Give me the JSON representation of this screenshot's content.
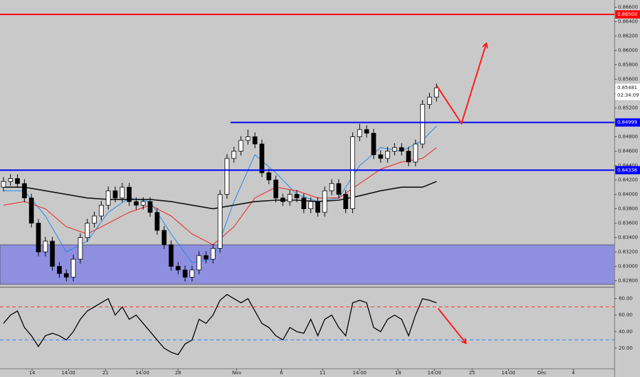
{
  "chart_data": {
    "type": "candlestick",
    "background": "#c9c9c9",
    "x": [
      0,
      1,
      2,
      3,
      4,
      5,
      6,
      7,
      8,
      9,
      10,
      11,
      12,
      13,
      14,
      15,
      16,
      17,
      18,
      19,
      20,
      21,
      22,
      23,
      24,
      25,
      26,
      27,
      28,
      29,
      30,
      31,
      32,
      33,
      34,
      35,
      36,
      37,
      38,
      39,
      40,
      41,
      42,
      43,
      44,
      45,
      46,
      47,
      48,
      49,
      50,
      51,
      52,
      53,
      54,
      55,
      56,
      57,
      58,
      59,
      60,
      61,
      62
    ],
    "open": [
      0.841,
      0.8418,
      0.8422,
      0.8415,
      0.8395,
      0.836,
      0.832,
      0.8335,
      0.83,
      0.829,
      0.8285,
      0.831,
      0.834,
      0.836,
      0.837,
      0.8385,
      0.8405,
      0.8395,
      0.841,
      0.839,
      0.8385,
      0.839,
      0.8375,
      0.835,
      0.833,
      0.83,
      0.8295,
      0.8285,
      0.8295,
      0.8315,
      0.831,
      0.8325,
      0.84,
      0.845,
      0.846,
      0.8475,
      0.848,
      0.847,
      0.843,
      0.842,
      0.8395,
      0.839,
      0.84,
      0.8395,
      0.838,
      0.839,
      0.8375,
      0.8405,
      0.8415,
      0.84,
      0.838,
      0.848,
      0.849,
      0.8485,
      0.8455,
      0.845,
      0.846,
      0.8465,
      0.846,
      0.8445,
      0.847,
      0.8525,
      0.8535
    ],
    "high": [
      0.8424,
      0.8428,
      0.8428,
      0.8421,
      0.8401,
      0.8366,
      0.8341,
      0.8341,
      0.8306,
      0.8296,
      0.8316,
      0.8346,
      0.8366,
      0.8376,
      0.8391,
      0.8411,
      0.8411,
      0.8416,
      0.8416,
      0.8396,
      0.8396,
      0.8396,
      0.8381,
      0.8356,
      0.8336,
      0.8306,
      0.8301,
      0.8301,
      0.8321,
      0.8321,
      0.8331,
      0.8406,
      0.8456,
      0.8466,
      0.8481,
      0.849,
      0.8486,
      0.8476,
      0.8436,
      0.8426,
      0.8401,
      0.8406,
      0.8406,
      0.8401,
      0.8396,
      0.8396,
      0.8411,
      0.8421,
      0.8421,
      0.8406,
      0.8486,
      0.8498,
      0.8496,
      0.8491,
      0.8461,
      0.8466,
      0.8471,
      0.8471,
      0.8466,
      0.8476,
      0.8531,
      0.8541,
      0.8554
    ],
    "low": [
      0.8404,
      0.8412,
      0.8409,
      0.8389,
      0.8354,
      0.8314,
      0.8314,
      0.8294,
      0.8284,
      0.8279,
      0.8279,
      0.8304,
      0.8334,
      0.8354,
      0.8364,
      0.8379,
      0.8389,
      0.8389,
      0.8384,
      0.8379,
      0.8379,
      0.8369,
      0.8344,
      0.8324,
      0.8294,
      0.8289,
      0.8279,
      0.8279,
      0.8289,
      0.8304,
      0.8304,
      0.8319,
      0.8394,
      0.8444,
      0.8454,
      0.8469,
      0.8464,
      0.8424,
      0.8414,
      0.8389,
      0.8384,
      0.8384,
      0.8389,
      0.8374,
      0.8374,
      0.8369,
      0.8369,
      0.8399,
      0.8394,
      0.8374,
      0.8374,
      0.8474,
      0.8479,
      0.8449,
      0.8444,
      0.8444,
      0.8454,
      0.8454,
      0.8439,
      0.8439,
      0.8464,
      0.8519,
      0.8529
    ],
    "close": [
      0.8418,
      0.8422,
      0.8415,
      0.8395,
      0.836,
      0.832,
      0.8335,
      0.83,
      0.829,
      0.8285,
      0.831,
      0.834,
      0.836,
      0.837,
      0.8385,
      0.8405,
      0.8395,
      0.841,
      0.839,
      0.8385,
      0.839,
      0.8375,
      0.835,
      0.833,
      0.83,
      0.8295,
      0.8285,
      0.8295,
      0.8315,
      0.831,
      0.8325,
      0.84,
      0.845,
      0.846,
      0.8475,
      0.848,
      0.847,
      0.843,
      0.842,
      0.8395,
      0.839,
      0.84,
      0.8395,
      0.838,
      0.839,
      0.8375,
      0.8405,
      0.8415,
      0.84,
      0.838,
      0.848,
      0.849,
      0.8485,
      0.8455,
      0.845,
      0.846,
      0.8465,
      0.846,
      0.8445,
      0.847,
      0.8525,
      0.8535,
      0.8548
    ],
    "moving_averages": [
      {
        "color": "#2f8fe8",
        "x": [
          0,
          3,
          6,
          9,
          12,
          15,
          18,
          21,
          24,
          27,
          30,
          33,
          36,
          39,
          42,
          45,
          48,
          51,
          54,
          57,
          60,
          62
        ],
        "values": [
          0.8405,
          0.8405,
          0.837,
          0.832,
          0.8335,
          0.8375,
          0.8395,
          0.839,
          0.8345,
          0.8305,
          0.831,
          0.839,
          0.8455,
          0.843,
          0.84,
          0.839,
          0.8395,
          0.844,
          0.8465,
          0.846,
          0.8475,
          0.8495
        ]
      },
      {
        "color": "#e8322f",
        "x": [
          0,
          3,
          6,
          9,
          12,
          15,
          18,
          21,
          24,
          27,
          30,
          33,
          36,
          39,
          42,
          45,
          48,
          51,
          54,
          57,
          60,
          62
        ],
        "values": [
          0.8385,
          0.839,
          0.838,
          0.8355,
          0.8345,
          0.836,
          0.8375,
          0.8385,
          0.837,
          0.8345,
          0.833,
          0.8355,
          0.8395,
          0.841,
          0.8405,
          0.8395,
          0.8395,
          0.8415,
          0.8435,
          0.8445,
          0.845,
          0.8465
        ]
      },
      {
        "color": "#111111",
        "x": [
          0,
          3,
          6,
          9,
          12,
          15,
          18,
          21,
          24,
          27,
          30,
          33,
          36,
          39,
          42,
          45,
          48,
          51,
          54,
          57,
          60,
          62
        ],
        "values": [
          0.841,
          0.841,
          0.8405,
          0.84,
          0.8395,
          0.8393,
          0.8393,
          0.8393,
          0.839,
          0.8385,
          0.838,
          0.8385,
          0.839,
          0.8392,
          0.8392,
          0.839,
          0.8392,
          0.8398,
          0.8405,
          0.841,
          0.841,
          0.8418
        ]
      }
    ],
    "levels": [
      {
        "value": 0.865,
        "label": "0.86500",
        "color": "#ff0000",
        "from": -0.5
      },
      {
        "value": 0.84999,
        "label": "0.84999",
        "color": "#0000ff",
        "from": 32.5
      },
      {
        "value": 0.84336,
        "label": "0.84336",
        "color": "#0000ff",
        "from": -0.5
      }
    ],
    "zone": {
      "from": 0.8275,
      "to": 0.833,
      "color": "#8f8fe0"
    },
    "last_price": {
      "value": 0.85481,
      "label": "0.85481",
      "countdown": "02:34:09"
    },
    "xlim": [
      -0.5,
      87.5
    ],
    "xticks": [
      {
        "value": 4.1,
        "label": "14"
      },
      {
        "value": 9.3,
        "label": "14:00"
      },
      {
        "value": 14.6,
        "label": "21"
      },
      {
        "value": 19.9,
        "label": "14:00"
      },
      {
        "value": 25.0,
        "label": "28"
      },
      {
        "value": 33.4,
        "label": "Nov"
      },
      {
        "value": 39.8,
        "label": "6"
      },
      {
        "value": 45.7,
        "label": "11"
      },
      {
        "value": 51.0,
        "label": "14:00"
      },
      {
        "value": 56.5,
        "label": "18"
      },
      {
        "value": 61.7,
        "label": "14:00"
      },
      {
        "value": 67.1,
        "label": "25"
      },
      {
        "value": 72.3,
        "label": "14:00"
      },
      {
        "value": 77.1,
        "label": "Dec"
      },
      {
        "value": 81.6,
        "label": "4"
      }
    ],
    "ylim": [
      0.8272,
      0.867
    ],
    "yticks": [
      {
        "value": 0.828,
        "label": "0.82800"
      },
      {
        "value": 0.83,
        "label": "0.83000"
      },
      {
        "value": 0.832,
        "label": "0.83200"
      },
      {
        "value": 0.834,
        "label": "0.83400"
      },
      {
        "value": 0.836,
        "label": "0.83600"
      },
      {
        "value": 0.838,
        "label": "0.83800"
      },
      {
        "value": 0.84,
        "label": "0.84000"
      },
      {
        "value": 0.842,
        "label": "0.84200"
      },
      {
        "value": 0.844,
        "label": "0.84400"
      },
      {
        "value": 0.846,
        "label": "0.84600"
      },
      {
        "value": 0.848,
        "label": "0.84800"
      },
      {
        "value": 0.85,
        "label": "0.85000"
      },
      {
        "value": 0.852,
        "label": "0.85200"
      },
      {
        "value": 0.854,
        "label": "0.85400"
      },
      {
        "value": 0.856,
        "label": "0.85600"
      },
      {
        "value": 0.858,
        "label": "0.85800"
      },
      {
        "value": 0.86,
        "label": "0.86000"
      },
      {
        "value": 0.862,
        "label": "0.86200"
      },
      {
        "value": 0.864,
        "label": "0.86400"
      },
      {
        "value": 0.866,
        "label": "0.86600"
      }
    ],
    "rsi": {
      "color": "#000000",
      "values": [
        50,
        60,
        65,
        45,
        35,
        22,
        35,
        38,
        35,
        30,
        40,
        55,
        65,
        70,
        75,
        80,
        60,
        70,
        55,
        60,
        50,
        40,
        30,
        20,
        15,
        12,
        25,
        30,
        55,
        50,
        60,
        78,
        85,
        80,
        75,
        80,
        65,
        50,
        45,
        35,
        30,
        45,
        40,
        38,
        55,
        35,
        55,
        60,
        45,
        35,
        75,
        78,
        75,
        45,
        40,
        55,
        60,
        55,
        35,
        60,
        80,
        78,
        75
      ],
      "ylim": [
        -5,
        93
      ],
      "yticks": [
        {
          "value": 20,
          "label": "20.00"
        },
        {
          "value": 40,
          "label": "40.00"
        },
        {
          "value": 60,
          "label": "60.00"
        },
        {
          "value": 80,
          "label": "80.00"
        }
      ],
      "levels": [
        {
          "value": 70,
          "color": "#ff3b3b"
        },
        {
          "value": 30,
          "color": "#3b8fff"
        }
      ]
    }
  }
}
